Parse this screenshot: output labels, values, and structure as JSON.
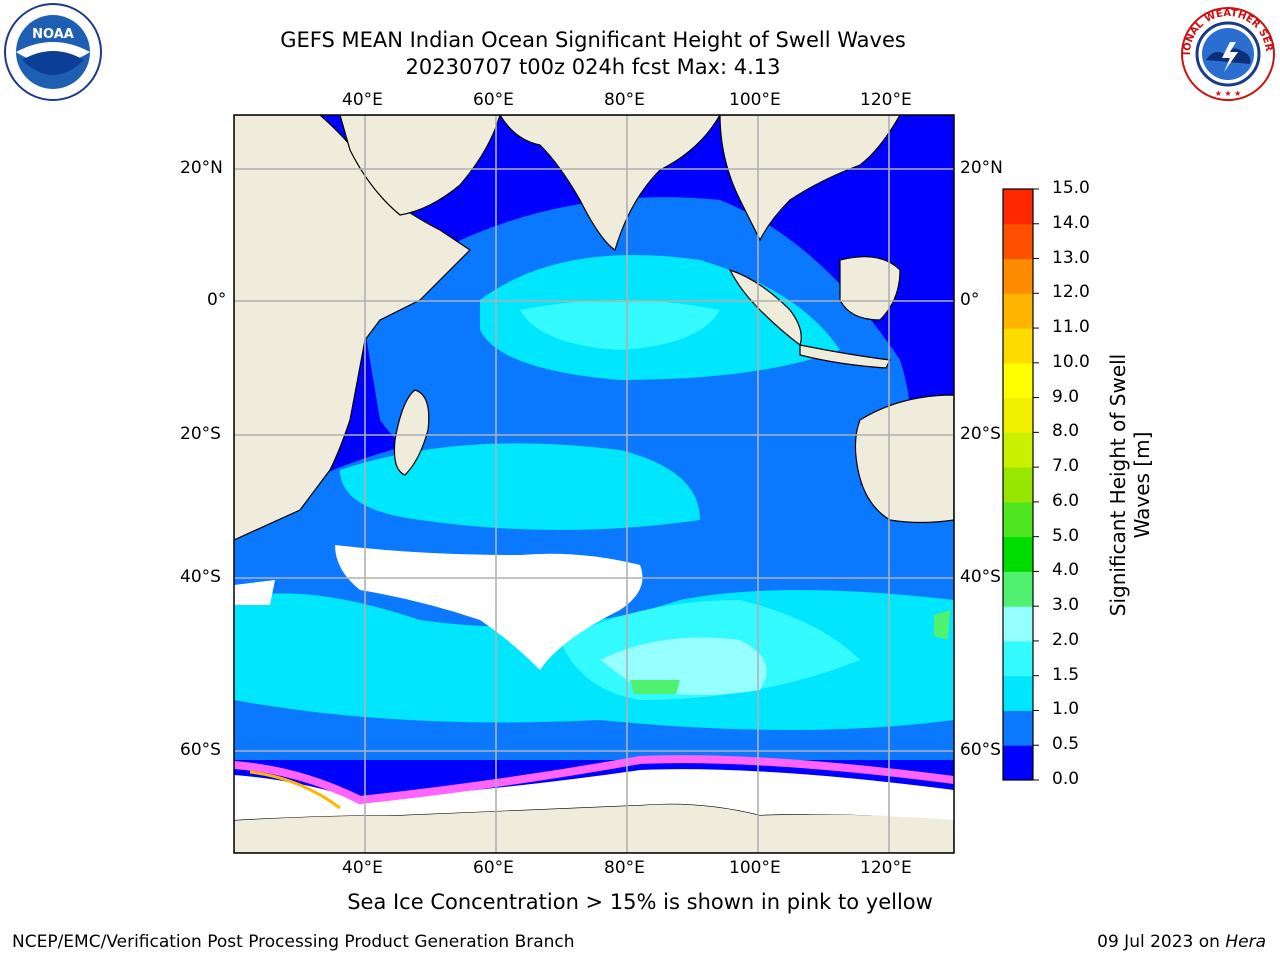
{
  "title": {
    "line1": "GEFS MEAN Indian Ocean Significant Height of Swell Waves",
    "line2": "20230707 t00z 024h fcst   Max: 4.13"
  },
  "logos": {
    "noaa_text": "NOAA",
    "noaa_ring": "NATIONAL OCEANIC AND ATMOSPHERIC ADMINISTRATION · U.S. DEPARTMENT OF COMMERCE",
    "nws_ring": "NATIONAL WEATHER SERVICE"
  },
  "axes": {
    "lon_labels": [
      "40°E",
      "60°E",
      "80°E",
      "100°E",
      "120°E"
    ],
    "lat_labels_left": [
      "20°N",
      "0°",
      "20°S",
      "40°S",
      "60°S"
    ],
    "lat_labels_right": [
      "20°N",
      "0°",
      "20°S",
      "40°S",
      "60°S"
    ]
  },
  "colorbar": {
    "label_line1": "Significant Height of Swell",
    "label_line2": "Waves [m]",
    "ticks": [
      "0.0",
      "0.5",
      "1.0",
      "1.5",
      "2.0",
      "3.0",
      "4.0",
      "5.0",
      "6.0",
      "7.0",
      "8.0",
      "9.0",
      "10.0",
      "11.0",
      "12.0",
      "13.0",
      "14.0",
      "15.0"
    ],
    "colors": [
      "#0000ff",
      "#0a78ff",
      "#00e6ff",
      "#32faff",
      "#96ffff",
      "#50f070",
      "#00dc00",
      "#4ee61e",
      "#96e600",
      "#c8f000",
      "#f0f000",
      "#ffff00",
      "#ffdc00",
      "#ffb400",
      "#ff8c00",
      "#ff5000",
      "#ff2800",
      "#ff0000"
    ]
  },
  "footer": {
    "note": "Sea Ice Concentration > 15% is shown in pink to yellow",
    "left": "NCEP/EMC/Verification Post Processing Product Generation Branch",
    "right_prefix": "09 Jul 2023 on ",
    "right_host": "Hera"
  }
}
